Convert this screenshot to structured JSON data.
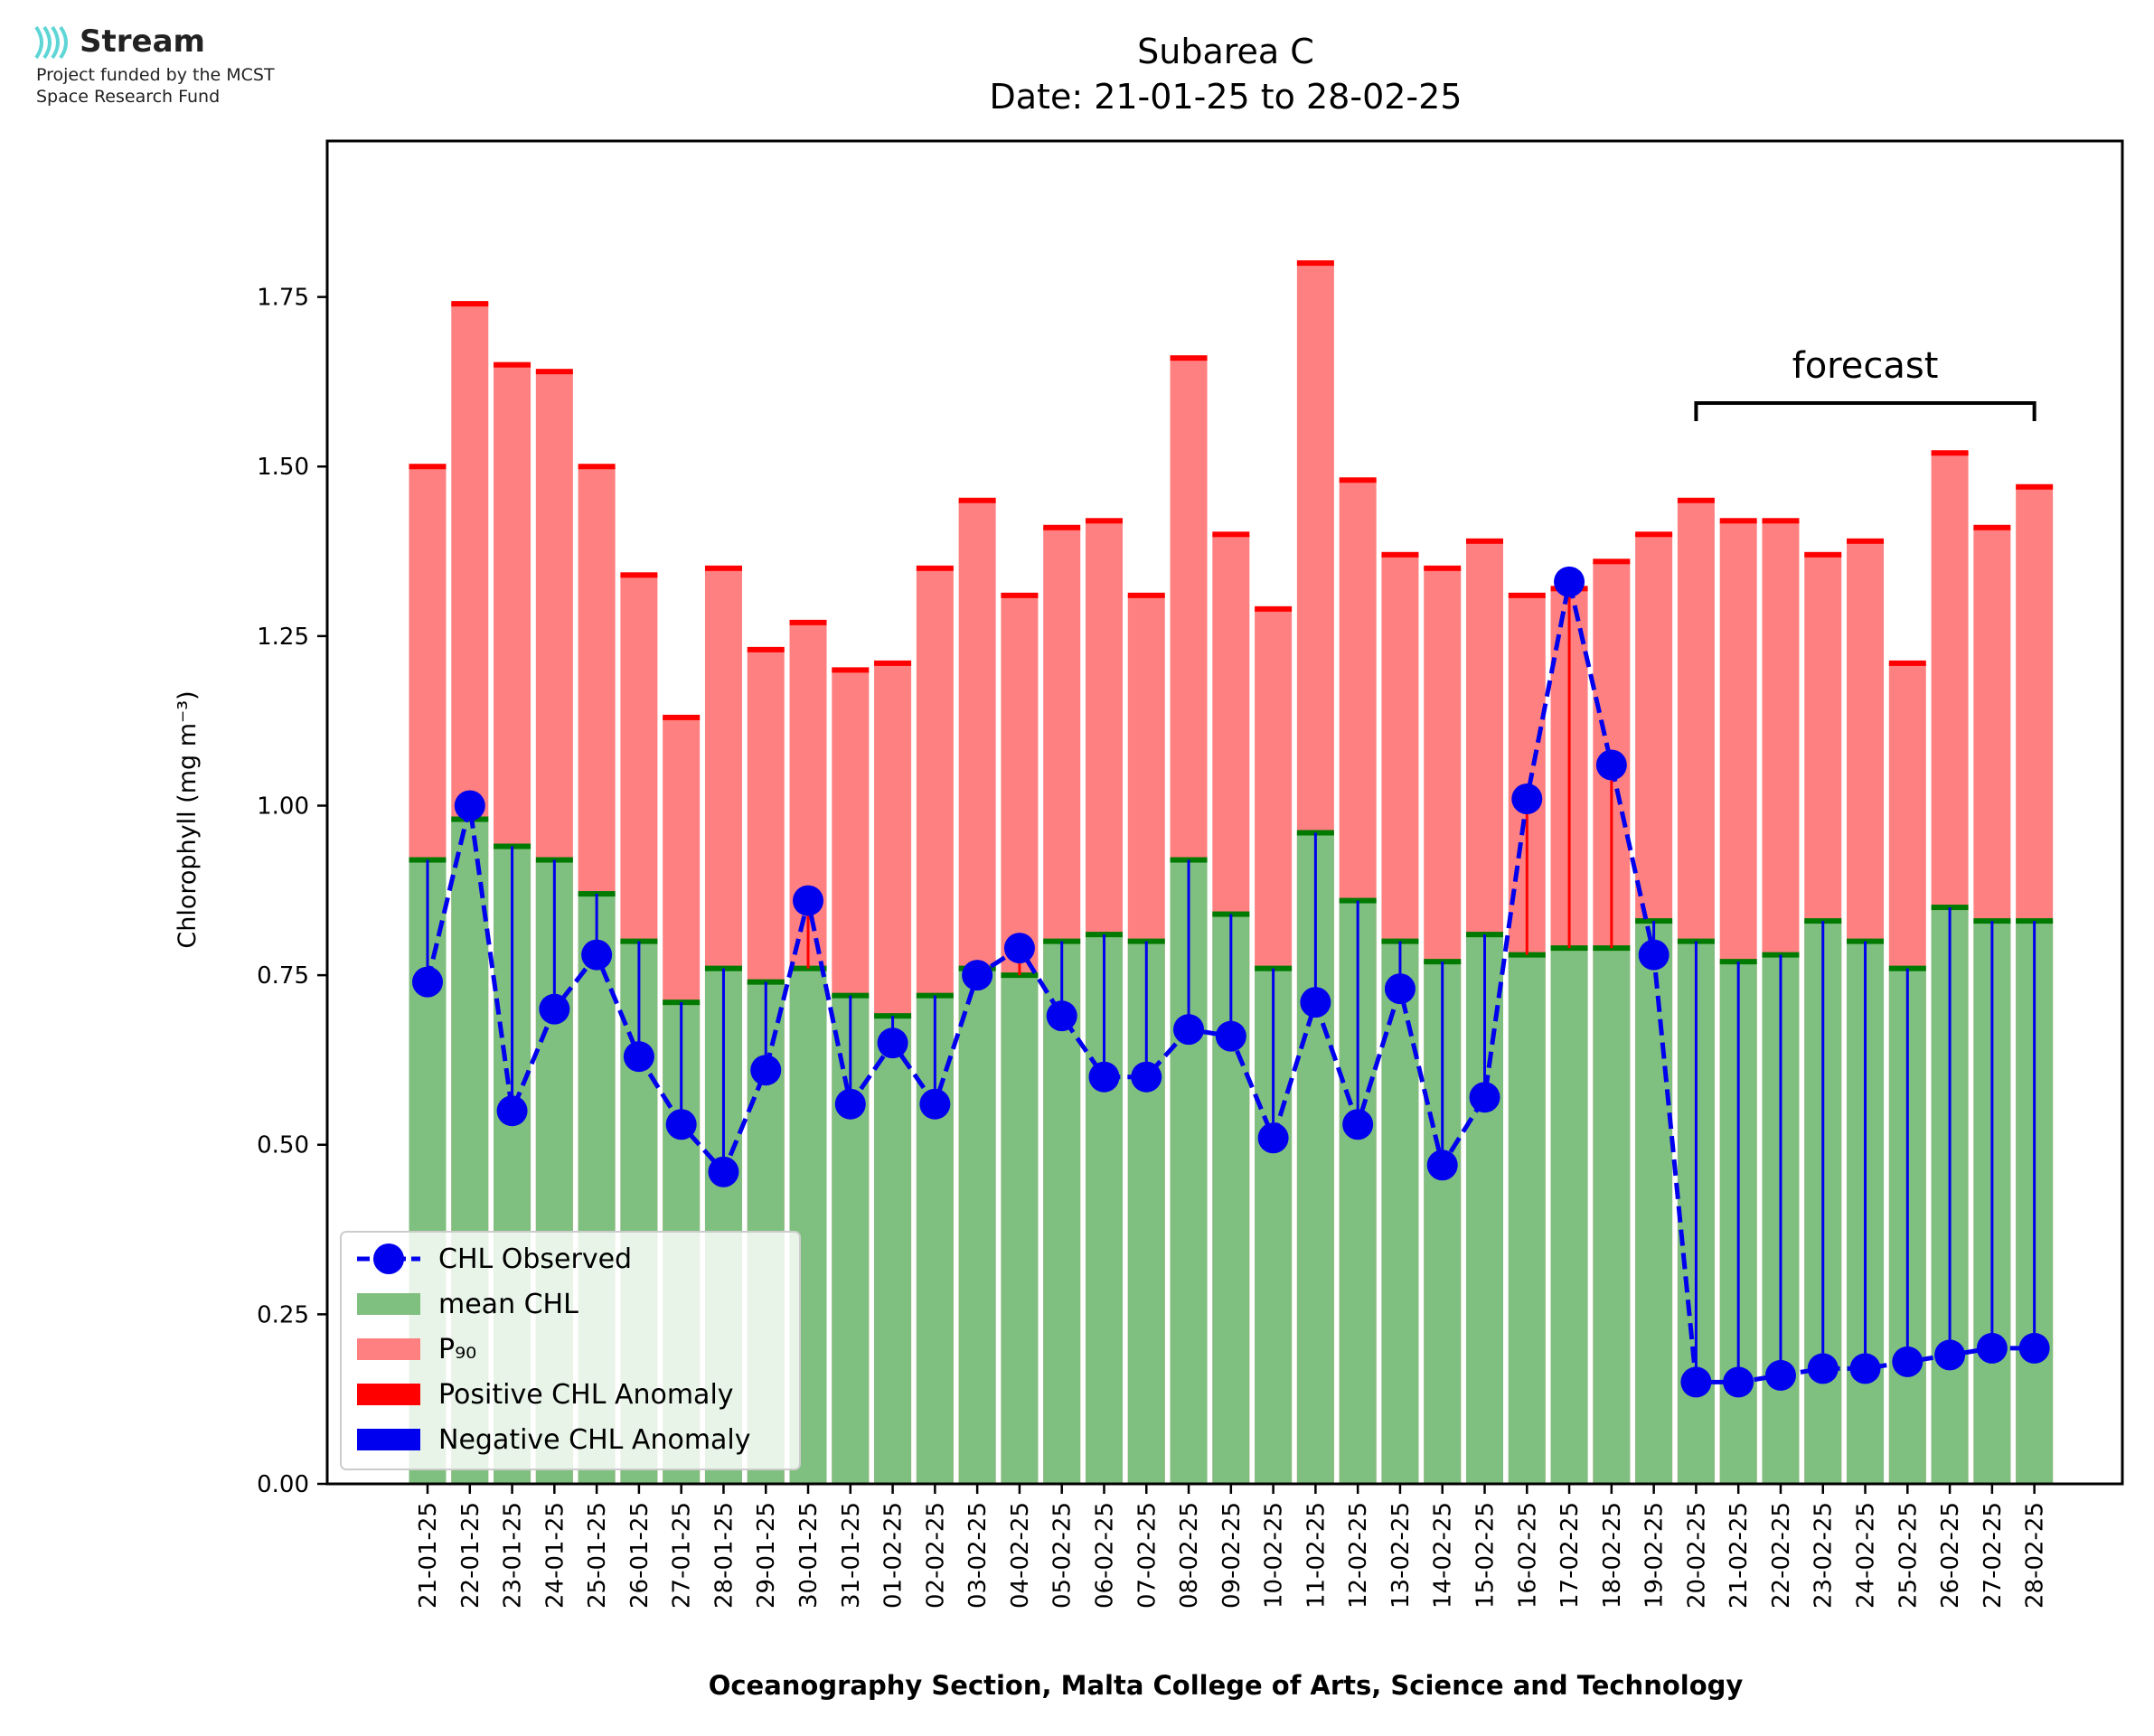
{
  "logo": {
    "name": "Stream",
    "line1": "Project funded by the MCST",
    "line2": "Space Research Fund"
  },
  "chart_data": {
    "type": "bar",
    "title": "Subarea C",
    "subtitle": "Date: 21-01-25 to 28-02-25",
    "xlabel": "Oceanography Section, Malta College of Arts, Science and Technology",
    "ylabel": "Chlorophyll (mg m⁻³)",
    "ylim": [
      0,
      1.98
    ],
    "yticks": [
      "0.00",
      "0.25",
      "0.50",
      "0.75",
      "1.00",
      "1.25",
      "1.50",
      "1.75"
    ],
    "ytick_values": [
      0,
      0.25,
      0.5,
      0.75,
      1.0,
      1.25,
      1.5,
      1.75
    ],
    "categories": [
      "21-01-25",
      "22-01-25",
      "23-01-25",
      "24-01-25",
      "25-01-25",
      "26-01-25",
      "27-01-25",
      "28-01-25",
      "29-01-25",
      "30-01-25",
      "31-01-25",
      "01-02-25",
      "02-02-25",
      "03-02-25",
      "04-02-25",
      "05-02-25",
      "06-02-25",
      "07-02-25",
      "08-02-25",
      "09-02-25",
      "10-02-25",
      "11-02-25",
      "12-02-25",
      "13-02-25",
      "14-02-25",
      "15-02-25",
      "16-02-25",
      "17-02-25",
      "18-02-25",
      "19-02-25",
      "20-02-25",
      "21-02-25",
      "22-02-25",
      "23-02-25",
      "24-02-25",
      "25-02-25",
      "26-02-25",
      "27-02-25",
      "28-02-25"
    ],
    "series": [
      {
        "name": "mean CHL",
        "color": "#7fbf7f",
        "values": [
          0.92,
          0.98,
          0.94,
          0.92,
          0.87,
          0.8,
          0.71,
          0.76,
          0.74,
          0.76,
          0.72,
          0.69,
          0.72,
          0.76,
          0.75,
          0.8,
          0.81,
          0.8,
          0.92,
          0.84,
          0.76,
          0.96,
          0.86,
          0.8,
          0.77,
          0.81,
          0.78,
          0.79,
          0.79,
          0.83,
          0.8,
          0.77,
          0.78,
          0.83,
          0.8,
          0.76,
          0.85,
          0.83,
          0.83
        ]
      },
      {
        "name": "P₉₀",
        "color": "#ff8080",
        "values": [
          1.5,
          1.74,
          1.65,
          1.64,
          1.5,
          1.34,
          1.13,
          1.35,
          1.23,
          1.27,
          1.2,
          1.21,
          1.35,
          1.45,
          1.31,
          1.41,
          1.42,
          1.31,
          1.66,
          1.4,
          1.29,
          1.8,
          1.48,
          1.37,
          1.35,
          1.39,
          1.31,
          1.32,
          1.36,
          1.4,
          1.45,
          1.42,
          1.42,
          1.37,
          1.39,
          1.21,
          1.52,
          1.41,
          1.47
        ]
      },
      {
        "name": "CHL Observed",
        "color": "#0000ee",
        "values": [
          0.74,
          1.0,
          0.55,
          0.7,
          0.78,
          0.63,
          0.53,
          0.46,
          0.61,
          0.86,
          0.56,
          0.65,
          0.56,
          0.75,
          0.79,
          0.69,
          0.6,
          0.6,
          0.67,
          0.66,
          0.51,
          0.71,
          0.53,
          0.73,
          0.47,
          0.57,
          1.01,
          1.33,
          1.06,
          0.78,
          0.15,
          0.15,
          0.16,
          0.17,
          0.17,
          0.18,
          0.19,
          0.2,
          0.2
        ]
      }
    ],
    "legend": {
      "position": "lower-left",
      "entries": [
        "CHL Observed",
        "mean CHL",
        "P₉₀",
        "Positive CHL Anomaly",
        "Negative CHL Anomaly"
      ]
    },
    "anomaly_colors": {
      "positive": "#ff0000",
      "negative": "#0000ee"
    },
    "annotation": {
      "text": "forecast",
      "from": "20-02-25",
      "to": "28-02-25"
    },
    "grid": false
  }
}
